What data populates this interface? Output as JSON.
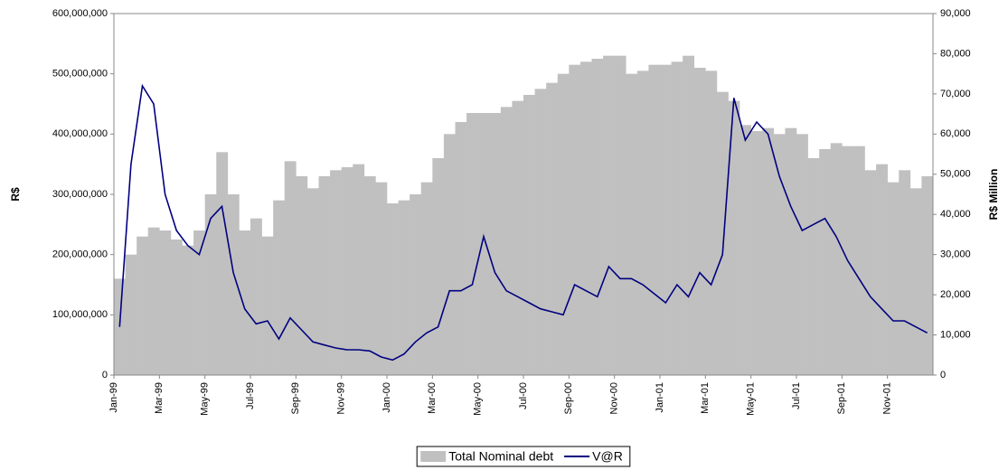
{
  "chart_data": {
    "type": "bar-line",
    "y_axis_label": "R$",
    "y2_axis_label": "R$ Million",
    "categories": [
      "Jan-99",
      null,
      null,
      null,
      "Mar-99",
      null,
      null,
      null,
      "May-99",
      null,
      null,
      null,
      "Jul-99",
      null,
      null,
      null,
      "Sep-99",
      null,
      null,
      null,
      "Nov-99",
      null,
      null,
      null,
      "Jan-00",
      null,
      null,
      null,
      "Mar-00",
      null,
      null,
      null,
      "May-00",
      null,
      null,
      null,
      "Jul-00",
      null,
      null,
      null,
      "Sep-00",
      null,
      null,
      null,
      "Nov-00",
      null,
      null,
      null,
      "Jan-01",
      null,
      null,
      null,
      "Mar-01",
      null,
      null,
      null,
      "May-01",
      null,
      null,
      null,
      "Jul-01",
      null,
      null,
      null,
      "Sep-01",
      null,
      null,
      null,
      "Nov-01",
      null,
      null,
      null
    ],
    "series": [
      {
        "name": "Total Nominal debt",
        "type": "bar",
        "axis": "y2",
        "color": "#c0c0c0",
        "values": [
          24000,
          30000,
          34500,
          36750,
          36000,
          33750,
          32250,
          36000,
          45000,
          55500,
          45000,
          36000,
          39000,
          34500,
          43500,
          53250,
          49500,
          46500,
          49500,
          51000,
          51750,
          52500,
          49500,
          48000,
          42750,
          43500,
          45000,
          48000,
          54000,
          60000,
          63000,
          65250,
          65250,
          65250,
          66750,
          68250,
          69750,
          71250,
          72750,
          75000,
          77250,
          78000,
          78750,
          79500,
          79500,
          75000,
          75750,
          77250,
          77250,
          78000,
          79500,
          76500,
          75750,
          70500,
          68250,
          62250,
          60750,
          61500,
          60000,
          61500,
          60000,
          54000,
          56250,
          57750,
          57000,
          57000,
          51000,
          52500,
          48000,
          51000,
          46500,
          49500
        ]
      },
      {
        "name": "V@R",
        "type": "line",
        "color": "#000080",
        "values": [
          80000000,
          350000000,
          480000000,
          450000000,
          300000000,
          240000000,
          215000000,
          200000000,
          260000000,
          280000000,
          170000000,
          110000000,
          85000000,
          90000000,
          60000000,
          95000000,
          75000000,
          55000000,
          50000000,
          45000000,
          42000000,
          42000000,
          40000000,
          30000000,
          25000000,
          35000000,
          55000000,
          70000000,
          80000000,
          140000000,
          140000000,
          150000000,
          230000000,
          170000000,
          140000000,
          130000000,
          120000000,
          110000000,
          105000000,
          100000000,
          150000000,
          140000000,
          130000000,
          180000000,
          160000000,
          160000000,
          150000000,
          135000000,
          120000000,
          150000000,
          130000000,
          170000000,
          150000000,
          200000000,
          460000000,
          390000000,
          420000000,
          400000000,
          330000000,
          280000000,
          240000000,
          250000000,
          260000000,
          230000000,
          190000000,
          160000000,
          130000000,
          110000000,
          90000000,
          90000000,
          80000000,
          70000000
        ]
      }
    ],
    "ylim": [
      0,
      600000000
    ],
    "yticks": [
      0,
      {
        "value": 100000000,
        "label": "100,000,000"
      },
      {
        "value": 200000000,
        "label": "200,000,000"
      },
      {
        "value": 300000000,
        "label": "300,000,000"
      },
      {
        "value": 400000000,
        "label": "400,000,000"
      },
      {
        "value": 500000000,
        "label": "500,000,000"
      },
      {
        "value": 600000000,
        "label": "600,000,000"
      }
    ],
    "y2lim": [
      0,
      90000
    ],
    "y2ticks": [
      0,
      {
        "value": 10000,
        "label": "10,000"
      },
      {
        "value": 20000,
        "label": "20,000"
      },
      {
        "value": 30000,
        "label": "30,000"
      },
      {
        "value": 40000,
        "label": "40,000"
      },
      {
        "value": 50000,
        "label": "50,000"
      },
      {
        "value": 60000,
        "label": "60,000"
      },
      {
        "value": 70000,
        "label": "70,000"
      },
      {
        "value": 80000,
        "label": "80,000"
      },
      {
        "value": 90000,
        "label": "90,000"
      }
    ],
    "legend": "bottom"
  }
}
